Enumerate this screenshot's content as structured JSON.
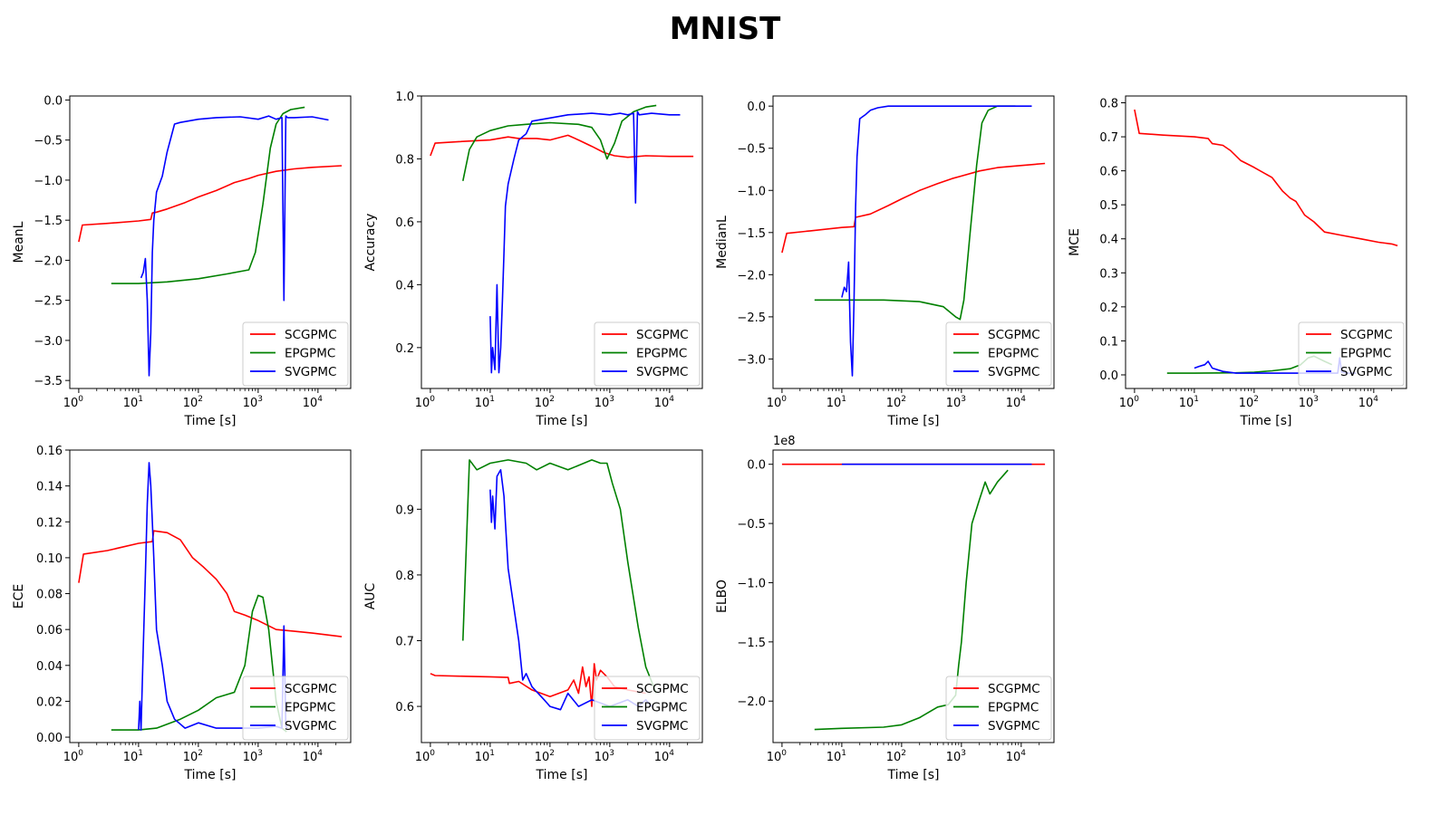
{
  "title": "MNIST",
  "colors": {
    "SCGPMC": "#ff0000",
    "EPGPMC": "#008000",
    "SVGPMC": "#0000ff"
  },
  "legend_location": "lower right",
  "chart_data": [
    {
      "type": "line",
      "xscale": "log",
      "xlim": [
        1,
        25000
      ],
      "ylim": [
        -3.6,
        0.05
      ],
      "xlabel": "Time [s]",
      "ylabel": "MeanL",
      "yticks": [
        "0.0",
        "−0.5",
        "−1.0",
        "−1.5",
        "−2.0",
        "−2.5",
        "−3.0",
        "−3.5"
      ],
      "ytick_values": [
        0,
        -0.5,
        -1,
        -1.5,
        -2,
        -2.5,
        -3,
        -3.5
      ],
      "series": [
        {
          "name": "SCGPMC",
          "x": [
            1,
            1.15,
            3,
            10,
            16,
            17,
            20,
            30,
            60,
            100,
            200,
            400,
            700,
            1000,
            2000,
            4000,
            8000,
            25000
          ],
          "y": [
            -1.77,
            -1.56,
            -1.54,
            -1.51,
            -1.49,
            -1.41,
            -1.4,
            -1.36,
            -1.28,
            -1.21,
            -1.13,
            -1.03,
            -0.98,
            -0.94,
            -0.89,
            -0.86,
            -0.84,
            -0.82
          ]
        },
        {
          "name": "EPGPMC",
          "x": [
            3.5,
            10,
            30,
            100,
            300,
            700,
            900,
            1200,
            1600,
            2000,
            2600,
            3500,
            6000
          ],
          "y": [
            -2.29,
            -2.29,
            -2.27,
            -2.23,
            -2.17,
            -2.12,
            -1.9,
            -1.3,
            -0.6,
            -0.3,
            -0.17,
            -0.12,
            -0.09
          ]
        },
        {
          "name": "SVGPMC",
          "x": [
            11,
            12,
            13,
            14,
            15,
            16,
            17,
            18,
            20,
            25,
            30,
            40,
            50,
            100,
            200,
            500,
            1000,
            1500,
            2000,
            2500,
            2700,
            2900,
            3100,
            4000,
            8000,
            15000
          ],
          "y": [
            -2.22,
            -2.15,
            -1.98,
            -2.5,
            -3.44,
            -2.9,
            -1.9,
            -1.5,
            -1.15,
            -0.95,
            -0.65,
            -0.3,
            -0.28,
            -0.24,
            -0.22,
            -0.21,
            -0.24,
            -0.2,
            -0.24,
            -0.22,
            -2.5,
            -0.2,
            -0.22,
            -0.22,
            -0.21,
            -0.25
          ]
        }
      ]
    },
    {
      "type": "line",
      "xscale": "log",
      "xlim": [
        1,
        25000
      ],
      "ylim": [
        0.07,
        1.0
      ],
      "xlabel": "Time [s]",
      "ylabel": "Accuracy",
      "yticks": [
        "1.0",
        "0.8",
        "0.6",
        "0.4",
        "0.2"
      ],
      "ytick_values": [
        1.0,
        0.8,
        0.6,
        0.4,
        0.2
      ],
      "series": [
        {
          "name": "SCGPMC",
          "x": [
            1,
            1.2,
            3,
            10,
            20,
            30,
            60,
            100,
            200,
            300,
            500,
            800,
            1200,
            2000,
            4000,
            10000,
            25000
          ],
          "y": [
            0.81,
            0.85,
            0.855,
            0.86,
            0.87,
            0.865,
            0.865,
            0.86,
            0.875,
            0.86,
            0.84,
            0.82,
            0.81,
            0.805,
            0.81,
            0.808,
            0.808
          ]
        },
        {
          "name": "EPGPMC",
          "x": [
            3.5,
            4.5,
            6,
            10,
            20,
            40,
            100,
            300,
            500,
            700,
            900,
            1200,
            1600,
            2500,
            4000,
            6000
          ],
          "y": [
            0.73,
            0.83,
            0.87,
            0.89,
            0.905,
            0.91,
            0.915,
            0.91,
            0.9,
            0.86,
            0.8,
            0.85,
            0.92,
            0.95,
            0.965,
            0.97
          ]
        },
        {
          "name": "SVGPMC",
          "x": [
            10,
            10.5,
            11,
            12,
            13,
            14,
            15,
            16,
            17,
            18,
            20,
            25,
            30,
            40,
            50,
            100,
            200,
            500,
            1000,
            1500,
            2000,
            2500,
            2700,
            2900,
            3100,
            5000,
            10000,
            15000
          ],
          "y": [
            0.3,
            0.12,
            0.2,
            0.13,
            0.4,
            0.12,
            0.2,
            0.35,
            0.5,
            0.65,
            0.72,
            0.8,
            0.86,
            0.88,
            0.92,
            0.93,
            0.94,
            0.945,
            0.94,
            0.945,
            0.94,
            0.945,
            0.66,
            0.95,
            0.94,
            0.945,
            0.94,
            0.94
          ]
        }
      ]
    },
    {
      "type": "line",
      "xscale": "log",
      "xlim": [
        1,
        25000
      ],
      "ylim": [
        -3.35,
        0.12
      ],
      "xlabel": "Time [s]",
      "ylabel": "MedianL",
      "yticks": [
        "0.0",
        "−0.5",
        "−1.0",
        "−1.5",
        "−2.0",
        "−2.5",
        "−3.0"
      ],
      "ytick_values": [
        0,
        -0.5,
        -1,
        -1.5,
        -2,
        -2.5,
        -3
      ],
      "series": [
        {
          "name": "SCGPMC",
          "x": [
            1,
            1.2,
            3,
            10,
            16,
            17,
            30,
            60,
            100,
            200,
            400,
            700,
            1000,
            2000,
            4000,
            8000,
            25000
          ],
          "y": [
            -1.74,
            -1.51,
            -1.48,
            -1.44,
            -1.43,
            -1.32,
            -1.28,
            -1.18,
            -1.1,
            -1.0,
            -0.92,
            -0.86,
            -0.83,
            -0.77,
            -0.73,
            -0.71,
            -0.68
          ]
        },
        {
          "name": "EPGPMC",
          "x": [
            3.5,
            10,
            50,
            200,
            500,
            800,
            950,
            1100,
            1400,
            1800,
            2200,
            2800,
            4000,
            8000
          ],
          "y": [
            -2.3,
            -2.3,
            -2.3,
            -2.32,
            -2.38,
            -2.5,
            -2.53,
            -2.3,
            -1.5,
            -0.7,
            -0.2,
            -0.05,
            0.0,
            0.0
          ]
        },
        {
          "name": "SVGPMC",
          "x": [
            10,
            11,
            12,
            13,
            14,
            15,
            16,
            17,
            18,
            20,
            25,
            30,
            40,
            60,
            100,
            1000,
            15000
          ],
          "y": [
            -2.27,
            -2.15,
            -2.2,
            -1.85,
            -2.8,
            -3.2,
            -2.3,
            -1.2,
            -0.6,
            -0.15,
            -0.1,
            -0.05,
            -0.02,
            0.0,
            0.0,
            0.0,
            0.0
          ]
        }
      ]
    },
    {
      "type": "line",
      "xscale": "log",
      "xlim": [
        1,
        25000
      ],
      "ylim": [
        -0.04,
        0.82
      ],
      "xlabel": "Time [s]",
      "ylabel": "MCE",
      "yticks": [
        "0.8",
        "0.7",
        "0.6",
        "0.5",
        "0.4",
        "0.3",
        "0.2",
        "0.1",
        "0.0"
      ],
      "ytick_values": [
        0.8,
        0.7,
        0.6,
        0.5,
        0.4,
        0.3,
        0.2,
        0.1,
        0.0
      ],
      "series": [
        {
          "name": "SCGPMC",
          "x": [
            1,
            1.2,
            3,
            10,
            17,
            20,
            30,
            40,
            60,
            100,
            200,
            300,
            400,
            500,
            700,
            1000,
            1500,
            3000,
            6000,
            12000,
            20000,
            25000
          ],
          "y": [
            0.78,
            0.71,
            0.705,
            0.7,
            0.695,
            0.68,
            0.675,
            0.66,
            0.63,
            0.61,
            0.58,
            0.54,
            0.52,
            0.51,
            0.47,
            0.45,
            0.42,
            0.41,
            0.4,
            0.39,
            0.385,
            0.38
          ]
        },
        {
          "name": "EPGPMC",
          "x": [
            3.5,
            10,
            50,
            100,
            200,
            400,
            600,
            800,
            1000,
            1500,
            2000
          ],
          "y": [
            0.005,
            0.005,
            0.006,
            0.008,
            0.012,
            0.018,
            0.03,
            0.05,
            0.055,
            0.04,
            0.03
          ]
        },
        {
          "name": "SVGPMC",
          "x": [
            10,
            12,
            15,
            17,
            20,
            30,
            50,
            100,
            300,
            1000,
            2500,
            2700,
            2900,
            3500,
            5000
          ],
          "y": [
            0.02,
            0.025,
            0.03,
            0.04,
            0.02,
            0.01,
            0.005,
            0.005,
            0.005,
            0.005,
            0.005,
            0.05,
            0.008,
            0.005,
            0.005
          ]
        }
      ]
    },
    {
      "type": "line",
      "xscale": "log",
      "xlim": [
        1,
        25000
      ],
      "ylim": [
        -0.003,
        0.16
      ],
      "xlabel": "Time [s]",
      "ylabel": "ECE",
      "yticks": [
        "0.16",
        "0.14",
        "0.12",
        "0.10",
        "0.08",
        "0.06",
        "0.04",
        "0.02",
        "0.00"
      ],
      "ytick_values": [
        0.16,
        0.14,
        0.12,
        0.1,
        0.08,
        0.06,
        0.04,
        0.02,
        0.0
      ],
      "series": [
        {
          "name": "SCGPMC",
          "x": [
            1,
            1.2,
            3,
            10,
            17,
            18,
            30,
            50,
            80,
            120,
            200,
            300,
            400,
            600,
            1000,
            2000,
            4000,
            8000,
            25000
          ],
          "y": [
            0.086,
            0.102,
            0.104,
            0.108,
            0.109,
            0.115,
            0.114,
            0.11,
            0.1,
            0.095,
            0.088,
            0.08,
            0.07,
            0.068,
            0.065,
            0.06,
            0.059,
            0.058,
            0.056
          ]
        },
        {
          "name": "EPGPMC",
          "x": [
            3.5,
            10,
            20,
            50,
            100,
            200,
            400,
            600,
            800,
            1000,
            1200,
            1500,
            2000,
            2500,
            3000
          ],
          "y": [
            0.004,
            0.004,
            0.005,
            0.01,
            0.015,
            0.022,
            0.025,
            0.04,
            0.07,
            0.079,
            0.078,
            0.06,
            0.02,
            0.005,
            0.003
          ]
        },
        {
          "name": "SVGPMC",
          "x": [
            10,
            10.5,
            11,
            12,
            13,
            14,
            15,
            16,
            17,
            18,
            20,
            25,
            30,
            40,
            60,
            100,
            200,
            500,
            1000,
            2000,
            2500,
            2700,
            2900,
            3100
          ],
          "y": [
            0.004,
            0.02,
            0.004,
            0.05,
            0.09,
            0.13,
            0.153,
            0.14,
            0.12,
            0.1,
            0.06,
            0.04,
            0.02,
            0.01,
            0.005,
            0.008,
            0.005,
            0.005,
            0.005,
            0.006,
            0.005,
            0.062,
            0.006,
            0.005
          ]
        }
      ]
    },
    {
      "type": "line",
      "xscale": "log",
      "xlim": [
        1,
        25000
      ],
      "ylim": [
        0.545,
        0.99
      ],
      "xlabel": "Time [s]",
      "ylabel": "AUC",
      "yticks": [
        "0.9",
        "0.8",
        "0.7",
        "0.6"
      ],
      "ytick_values": [
        0.9,
        0.8,
        0.7,
        0.6
      ],
      "series": [
        {
          "name": "SCGPMC",
          "x": [
            1,
            1.2,
            3,
            10,
            20,
            21,
            30,
            50,
            100,
            200,
            250,
            300,
            350,
            400,
            450,
            500,
            550,
            600,
            700,
            900,
            1200,
            2000,
            4000
          ],
          "y": [
            0.65,
            0.647,
            0.646,
            0.645,
            0.644,
            0.635,
            0.638,
            0.625,
            0.615,
            0.625,
            0.64,
            0.62,
            0.66,
            0.63,
            0.645,
            0.6,
            0.665,
            0.64,
            0.655,
            0.645,
            0.63,
            0.625,
            0.62
          ]
        },
        {
          "name": "EPGPMC",
          "x": [
            3.5,
            4.5,
            6,
            10,
            20,
            40,
            60,
            100,
            200,
            500,
            700,
            900,
            1100,
            1500,
            2000,
            3000,
            4000,
            6000
          ],
          "y": [
            0.7,
            0.975,
            0.96,
            0.97,
            0.975,
            0.97,
            0.96,
            0.97,
            0.96,
            0.975,
            0.97,
            0.97,
            0.94,
            0.9,
            0.82,
            0.72,
            0.66,
            0.62
          ]
        },
        {
          "name": "SVGPMC",
          "x": [
            10,
            10.5,
            11,
            12,
            13,
            15,
            17,
            18,
            20,
            25,
            30,
            35,
            40,
            50,
            80,
            100,
            150,
            200,
            300,
            500,
            1000,
            2000,
            3000,
            4000,
            5000
          ],
          "y": [
            0.93,
            0.88,
            0.92,
            0.87,
            0.95,
            0.96,
            0.92,
            0.88,
            0.81,
            0.75,
            0.7,
            0.64,
            0.65,
            0.63,
            0.61,
            0.6,
            0.595,
            0.62,
            0.6,
            0.61,
            0.6,
            0.61,
            0.6,
            0.61,
            0.6
          ]
        }
      ]
    },
    {
      "type": "line",
      "xscale": "log",
      "xlim": [
        1,
        25000
      ],
      "ylim": [
        -235000000.0,
        12000000.0
      ],
      "xlabel": "Time [s]",
      "ylabel": "ELBO",
      "offset_label": "1e8",
      "yticks": [
        "0.0",
        "−0.5",
        "−1.0",
        "−1.5",
        "−2.0"
      ],
      "ytick_values": [
        0,
        -50000000.0,
        -100000000.0,
        -150000000.0,
        -200000000.0
      ],
      "series": [
        {
          "name": "SCGPMC",
          "x": [
            1,
            10,
            100,
            1000,
            10000,
            25000
          ],
          "y": [
            0,
            0,
            0,
            0,
            0,
            0
          ]
        },
        {
          "name": "EPGPMC",
          "x": [
            3.5,
            10,
            50,
            100,
            200,
            400,
            600,
            800,
            900,
            1000,
            1200,
            1500,
            2000,
            2500,
            3000,
            4000,
            6000
          ],
          "y": [
            -224000000.0,
            -223000000.0,
            -222000000.0,
            -220000000.0,
            -214000000.0,
            -205000000.0,
            -203000000.0,
            -195000000.0,
            -170000000.0,
            -150000000.0,
            -100000000.0,
            -50000000.0,
            -30000000.0,
            -15000000.0,
            -25000000.0,
            -15000000.0,
            -5000000.0
          ]
        },
        {
          "name": "SVGPMC",
          "x": [
            10,
            100,
            1000,
            15000
          ],
          "y": [
            0,
            0,
            0,
            0
          ]
        }
      ]
    }
  ]
}
